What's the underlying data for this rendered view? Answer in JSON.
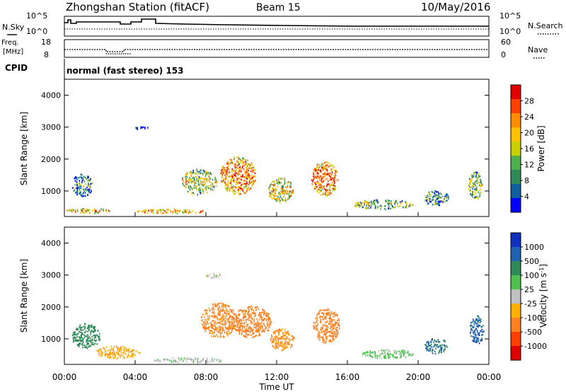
{
  "header": {
    "station": "Zhongshan Station (fitACF)",
    "beam": "Beam 15",
    "date": "10/May/2016"
  },
  "status_panel": {
    "nsky_label": "N.Sky",
    "nsky_ticks": [
      "10^5",
      "10^0"
    ],
    "nsearch_label": "N.Search",
    "nsearch_ticks": [
      "10^5",
      "10^0"
    ],
    "freq_label": "Freq.",
    "freq_unit": "[MHz]",
    "freq_ticks": [
      "18",
      "8"
    ],
    "nave_label": "Nave",
    "nave_ticks": [
      "60",
      "0"
    ],
    "cpid_label": "CPID",
    "cpid_text": "normal (fast stereo) 153"
  },
  "chart_data": [
    {
      "type": "heatmap",
      "panel": "power",
      "ylabel": "Slant Range [km]",
      "y_ticks": [
        "4000",
        "3000",
        "2000",
        "1000"
      ],
      "y_values": [
        4000,
        3000,
        2000,
        1000
      ],
      "ylim": [
        200,
        4500
      ],
      "xlim": [
        0,
        24
      ],
      "colorbar_label": "Power [dB]",
      "colorbar_ticks": [
        "28",
        "24",
        "20",
        "16",
        "12",
        "8",
        "4"
      ],
      "colorbar_colors": [
        "#e00000",
        "#ff4000",
        "#ff8c00",
        "#ffc000",
        "#c8d000",
        "#50b050",
        "#2e8b57",
        "#1060a0",
        "#0000ff"
      ],
      "blobs": [
        {
          "x": 4.3,
          "y": 3000,
          "w": 0.8,
          "h": 120,
          "v": 6
        },
        {
          "x": 1.3,
          "y": 400,
          "w": 2.6,
          "h": 150,
          "v": 22
        },
        {
          "x": 6.0,
          "y": 380,
          "w": 4.0,
          "h": 140,
          "v": 24
        },
        {
          "x": 1.0,
          "y": 1200,
          "w": 1.2,
          "h": 700,
          "v": 10
        },
        {
          "x": 7.6,
          "y": 1300,
          "w": 2.0,
          "h": 800,
          "v": 18
        },
        {
          "x": 9.8,
          "y": 1500,
          "w": 2.0,
          "h": 1200,
          "v": 26
        },
        {
          "x": 12.2,
          "y": 1050,
          "w": 1.4,
          "h": 800,
          "v": 20
        },
        {
          "x": 14.7,
          "y": 1400,
          "w": 1.5,
          "h": 1100,
          "v": 27
        },
        {
          "x": 18.0,
          "y": 600,
          "w": 3.4,
          "h": 300,
          "v": 15
        },
        {
          "x": 21.0,
          "y": 800,
          "w": 1.4,
          "h": 500,
          "v": 12
        },
        {
          "x": 23.2,
          "y": 1200,
          "w": 0.8,
          "h": 900,
          "v": 16
        }
      ]
    },
    {
      "type": "heatmap",
      "panel": "velocity",
      "ylabel": "Slant Range [km]",
      "y_ticks": [
        "4000",
        "3000",
        "2000",
        "1000"
      ],
      "y_values": [
        4000,
        3000,
        2000,
        1000
      ],
      "ylim": [
        200,
        4500
      ],
      "xlim": [
        0,
        24
      ],
      "xlabel": "Time UT",
      "x_ticks": [
        "00:00",
        "04:00",
        "08:00",
        "12:00",
        "16:00",
        "20:00",
        "00:00"
      ],
      "x_values": [
        0,
        4,
        8,
        12,
        16,
        20,
        24
      ],
      "colorbar_label": "Velocity [m s^-1]",
      "colorbar_ticks": [
        "1000",
        "500",
        "100",
        "25",
        "-25",
        "-100",
        "-500",
        "-1000"
      ],
      "colorbar_colors": [
        "#1030c0",
        "#2060b0",
        "#2e8b57",
        "#50c050",
        "#c0c0c0",
        "#ffb000",
        "#ff8020",
        "#ff4000",
        "#e00000"
      ],
      "blobs": [
        {
          "x": 8.5,
          "y": 3000,
          "w": 1.0,
          "h": 150,
          "v": 0
        },
        {
          "x": 1.2,
          "y": 1100,
          "w": 1.6,
          "h": 800,
          "v": 300
        },
        {
          "x": 3.0,
          "y": 600,
          "w": 2.5,
          "h": 400,
          "v": -80
        },
        {
          "x": 7.0,
          "y": 350,
          "w": 4.0,
          "h": 150,
          "v": 10
        },
        {
          "x": 8.7,
          "y": 1600,
          "w": 2.0,
          "h": 1100,
          "v": -200
        },
        {
          "x": 10.6,
          "y": 1550,
          "w": 2.2,
          "h": 1000,
          "v": -300
        },
        {
          "x": 12.3,
          "y": 1000,
          "w": 1.4,
          "h": 700,
          "v": -150
        },
        {
          "x": 14.8,
          "y": 1450,
          "w": 1.5,
          "h": 1100,
          "v": -250
        },
        {
          "x": 18.3,
          "y": 550,
          "w": 3.0,
          "h": 280,
          "v": 50
        },
        {
          "x": 21.0,
          "y": 800,
          "w": 1.3,
          "h": 500,
          "v": 600
        },
        {
          "x": 23.3,
          "y": 1300,
          "w": 0.8,
          "h": 900,
          "v": 800
        }
      ]
    }
  ]
}
